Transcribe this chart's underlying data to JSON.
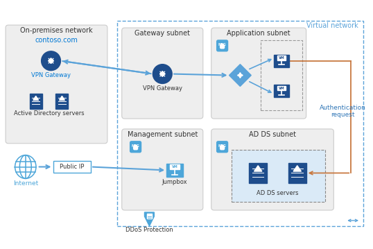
{
  "bg_color": "#ffffff",
  "light_blue": "#4da6d9",
  "dark_blue": "#1a3a6b",
  "blue_icon": "#1e4d8c",
  "med_blue": "#2e75b6",
  "arrow_blue": "#5ba3d9",
  "arrow_orange": "#c87941",
  "box_gray": "#eeeeee",
  "box_blue_border": "#5ba3d9",
  "dashed_gray": "#aaaaaa",
  "text_dark": "#404040",
  "text_blue": "#2e75b6",
  "text_cyan": "#0078d4",
  "title": "On-premises network",
  "virtual_network_label": "Virtual network",
  "gateway_subnet_label": "Gateway subnet",
  "app_subnet_label": "Application subnet",
  "mgmt_subnet_label": "Management subnet",
  "adds_subnet_label": "AD DS subnet",
  "contoso_label": "contoso.com",
  "vpn_gw_label": "VPN Gateway",
  "ad_servers_label": "Active Directory servers",
  "internet_label": "Internet",
  "public_ip_label": "Public IP",
  "jumpbox_label": "Jumpbox",
  "ddos_label": "DDoS Protection",
  "adds_servers_label": "AD DS servers",
  "auth_request_label": "Authentication\nrequest",
  "nsg_label": "NSG",
  "vm_label": "VM"
}
